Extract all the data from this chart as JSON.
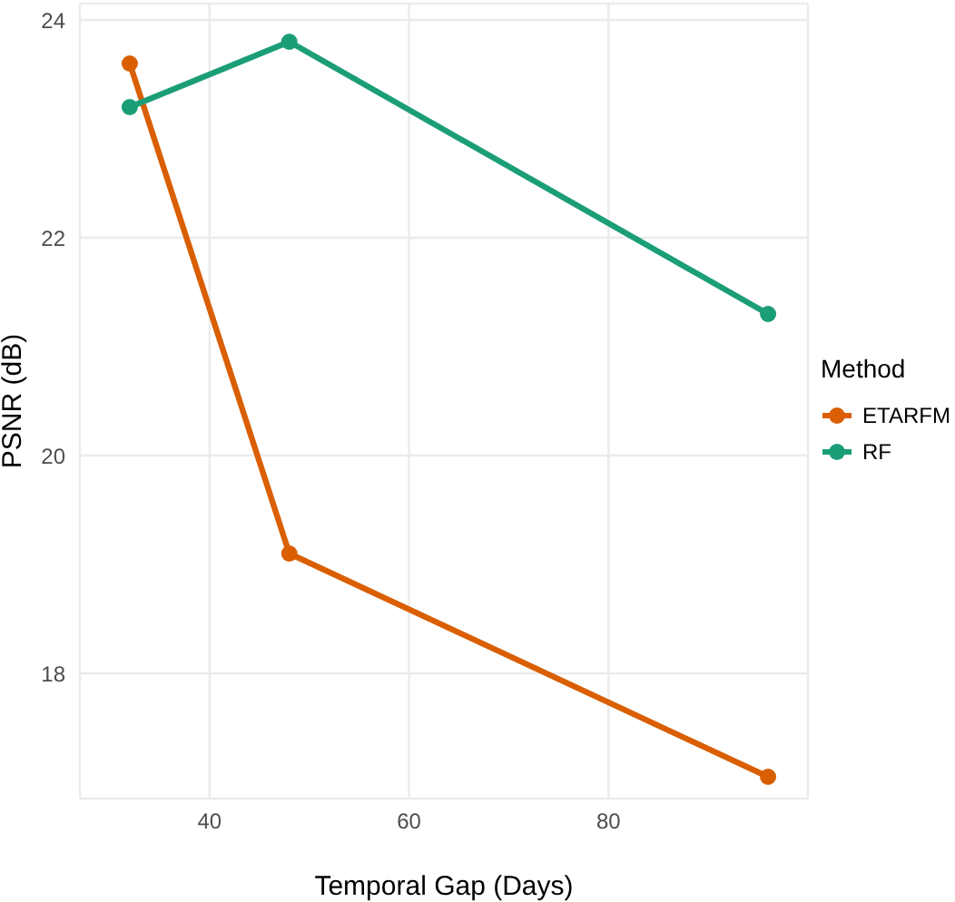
{
  "chart_data": {
    "type": "line",
    "xlabel": "Temporal Gap (Days)",
    "ylabel": "PSNR (dB)",
    "legend_title": "Method",
    "x": [
      32,
      48,
      96
    ],
    "series": [
      {
        "name": "ETARFM",
        "color": "#d95f02",
        "values": [
          23.6,
          19.1,
          17.05
        ]
      },
      {
        "name": "RF",
        "color": "#1b9e77",
        "values": [
          23.2,
          23.8,
          21.3
        ]
      }
    ],
    "xlim": [
      27,
      100
    ],
    "xticks": [
      40,
      60,
      80
    ],
    "ylim": [
      16.85,
      24.15
    ],
    "yticks": [
      18,
      20,
      22,
      24
    ],
    "grid": true,
    "legend": "right",
    "marker": "circle",
    "line_style": "solid"
  }
}
